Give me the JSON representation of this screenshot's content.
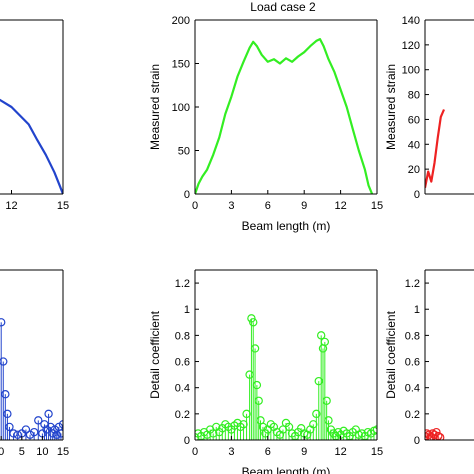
{
  "chart_data": [
    {
      "id": "left-top",
      "type": "line",
      "color": "#2244cc",
      "title": "",
      "xlabel": "",
      "ylabel": "",
      "xticks": [
        "12",
        "15"
      ],
      "yticks": [],
      "series": [
        {
          "x": [
            0.5,
            1.5,
            3,
            4.5,
            6,
            7.5,
            9,
            10.5,
            12,
            13,
            13.5,
            14,
            14.5,
            14.8,
            15
          ],
          "y": [
            175,
            172,
            165,
            155,
            148,
            140,
            128,
            118,
            100,
            80,
            62,
            45,
            25,
            10,
            0
          ]
        }
      ]
    },
    {
      "id": "center-top",
      "type": "line",
      "color": "#33ee22",
      "title": "Load case 2",
      "xlabel": "Beam length (m)",
      "ylabel": "Measured strain",
      "xlim": [
        0,
        15
      ],
      "ylim": [
        0,
        200
      ],
      "xticks": [
        "0",
        "3",
        "6",
        "9",
        "12",
        "15"
      ],
      "yticks": [
        "0",
        "50",
        "100",
        "150",
        "200"
      ],
      "series": [
        {
          "x": [
            0,
            0.3,
            0.6,
            1,
            1.5,
            2,
            2.5,
            3,
            3.5,
            4,
            4.5,
            4.8,
            5.1,
            5.5,
            6,
            6.5,
            7,
            7.5,
            8,
            8.5,
            9,
            9.5,
            10,
            10.3,
            10.6,
            11,
            11.5,
            12,
            12.5,
            13,
            13.5,
            14,
            14.3,
            14.6
          ],
          "y": [
            0,
            12,
            20,
            28,
            45,
            65,
            92,
            112,
            135,
            152,
            168,
            175,
            170,
            160,
            152,
            155,
            150,
            156,
            152,
            158,
            163,
            170,
            176,
            178,
            170,
            155,
            140,
            120,
            100,
            75,
            50,
            28,
            10,
            0
          ]
        }
      ]
    },
    {
      "id": "right-top",
      "type": "line",
      "color": "#ee2222",
      "title": "",
      "xlabel": "",
      "ylabel": "Measured strain",
      "ylim": [
        0,
        140
      ],
      "yticks": [
        "0",
        "20",
        "40",
        "60",
        "80",
        "100",
        "120",
        "140"
      ],
      "series": [
        {
          "x": [
            0,
            0.5,
            1,
            1.5,
            2,
            2.5,
            3
          ],
          "y": [
            5,
            18,
            10,
            25,
            45,
            62,
            68
          ]
        }
      ]
    },
    {
      "id": "left-bottom",
      "type": "stem",
      "color": "#2244cc",
      "xticks": [
        "0",
        "5",
        "10",
        "15"
      ],
      "series": [
        {
          "x": [
            0,
            0.5,
            1,
            1.5,
            2,
            3,
            4,
            5,
            6,
            7,
            8,
            9,
            10,
            10.5,
            11,
            11.5,
            12,
            12.5,
            13,
            13.5,
            14,
            14.5,
            15
          ],
          "y": [
            0.9,
            0.6,
            0.35,
            0.2,
            0.1,
            0.05,
            0.04,
            0.05,
            0.08,
            0.04,
            0.06,
            0.15,
            0.05,
            0.12,
            0.08,
            0.2,
            0.1,
            0.05,
            0.08,
            0.04,
            0.1,
            0.05,
            0.12
          ]
        }
      ]
    },
    {
      "id": "center-bottom",
      "type": "stem",
      "color": "#33ee22",
      "xlabel": "Beam length (m)",
      "ylabel": "Detail coefficient",
      "xlim": [
        0,
        15
      ],
      "ylim": [
        0,
        1.3
      ],
      "xticks": [
        "0",
        "3",
        "6",
        "9",
        "12",
        "15"
      ],
      "yticks": [
        "0",
        "0.2",
        "0.4",
        "0.6",
        "0.8",
        "1",
        "1.2"
      ],
      "series": [
        {
          "x": [
            0,
            0.25,
            0.5,
            0.75,
            1,
            1.25,
            1.5,
            1.75,
            2,
            2.25,
            2.5,
            2.75,
            3,
            3.25,
            3.5,
            3.75,
            4,
            4.25,
            4.5,
            4.65,
            4.8,
            4.95,
            5.1,
            5.25,
            5.4,
            5.6,
            5.8,
            6,
            6.25,
            6.5,
            6.75,
            7,
            7.25,
            7.5,
            7.75,
            8,
            8.25,
            8.5,
            8.75,
            9,
            9.25,
            9.5,
            9.75,
            10,
            10.2,
            10.4,
            10.55,
            10.7,
            10.85,
            11,
            11.2,
            11.4,
            11.6,
            11.8,
            12,
            12.25,
            12.5,
            12.75,
            13,
            13.25,
            13.5,
            13.75,
            14,
            14.25,
            14.5,
            14.75,
            15
          ],
          "y": [
            0.02,
            0.05,
            0.03,
            0.06,
            0.04,
            0.08,
            0.05,
            0.1,
            0.06,
            0.09,
            0.12,
            0.1,
            0.08,
            0.11,
            0.13,
            0.1,
            0.12,
            0.2,
            0.5,
            0.93,
            0.9,
            0.7,
            0.42,
            0.3,
            0.15,
            0.1,
            0.05,
            0.08,
            0.12,
            0.1,
            0.06,
            0.04,
            0.08,
            0.13,
            0.1,
            0.05,
            0.03,
            0.06,
            0.09,
            0.05,
            0.04,
            0.08,
            0.12,
            0.2,
            0.45,
            0.8,
            0.7,
            0.75,
            0.3,
            0.15,
            0.08,
            0.05,
            0.03,
            0.06,
            0.04,
            0.07,
            0.05,
            0.03,
            0.06,
            0.08,
            0.04,
            0.05,
            0.03,
            0.06,
            0.05,
            0.07,
            0.08
          ]
        }
      ]
    },
    {
      "id": "right-bottom",
      "type": "stem",
      "color": "#ee2222",
      "ylabel": "Detail coefficient",
      "ylim": [
        0,
        1.3
      ],
      "yticks": [
        "0",
        "0.2",
        "0.4",
        "0.6",
        "0.8",
        "1",
        "1.2"
      ],
      "series": [
        {
          "x": [
            0,
            0.3,
            0.6,
            0.9,
            1.2,
            1.5,
            1.8,
            2.1,
            2.4
          ],
          "y": [
            0.03,
            0.05,
            0.04,
            0.02,
            0.05,
            0.04,
            0.06,
            0.03,
            0.02
          ]
        }
      ]
    }
  ]
}
